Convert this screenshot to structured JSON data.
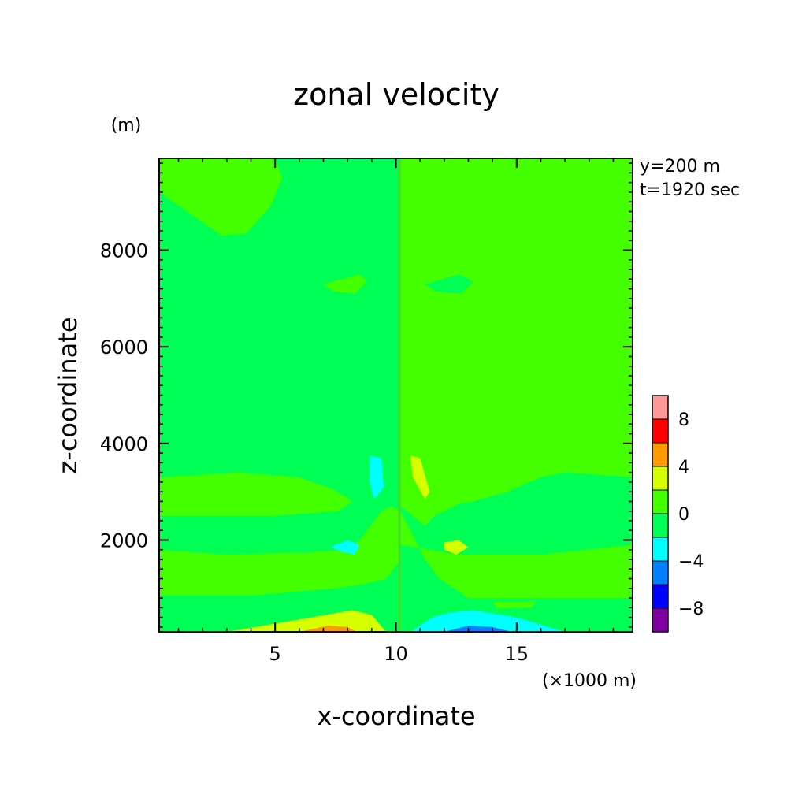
{
  "chart_data": {
    "type": "contour",
    "title": "zonal velocity",
    "xlabel": "x-coordinate",
    "ylabel": "z-coordinate",
    "x_unit": "(×1000 m)",
    "y_unit": "(m)",
    "annotations": [
      "y=200 m",
      "t=1920 sec"
    ],
    "xlim": [
      0.2,
      19.8
    ],
    "ylim": [
      100,
      9900
    ],
    "x_ticks": [
      5,
      10,
      15
    ],
    "x_tick_labels": [
      "5",
      "10",
      "15"
    ],
    "y_ticks": [
      2000,
      4000,
      6000,
      8000
    ],
    "y_tick_labels": [
      "2000",
      "4000",
      "6000",
      "8000"
    ],
    "grid": false,
    "colorbar": {
      "position": "right",
      "levels": [
        -10,
        -8,
        -6,
        -4,
        -2,
        0,
        2,
        4,
        6,
        8,
        10
      ],
      "tick_labels": [
        "8",
        "4",
        "0",
        "−4",
        "−8"
      ],
      "tick_values": [
        8,
        4,
        0,
        -4,
        -8
      ],
      "colors": [
        "#7f00a0",
        "#0000ff",
        "#0080ff",
        "#00ffff",
        "#00ff55",
        "#44ff00",
        "#d6ff00",
        "#ff9900",
        "#ff0000",
        "#ff9999"
      ]
    },
    "background_level": [
      -2,
      0
    ],
    "regions": [
      {
        "level": [
          0,
          2
        ],
        "x": [
          0.2,
          5.0,
          5.3,
          4.8,
          3.8,
          2.8,
          0.2
        ],
        "z": [
          9900,
          9900,
          9500,
          8900,
          8350,
          8300,
          9200
        ]
      },
      {
        "level": [
          0,
          2
        ],
        "x": [
          19.8,
          15.0,
          14.8,
          15.2,
          16.2,
          17.0,
          19.8
        ],
        "z": [
          9900,
          9900,
          9500,
          8900,
          8350,
          8300,
          9200
        ]
      },
      {
        "level": [
          0,
          2
        ],
        "x": [
          10.2,
          19.8,
          19.8,
          17.0,
          16.0,
          14.6,
          13.2,
          12.6,
          12.4,
          11.6,
          11.2,
          10.2
        ],
        "z": [
          9900,
          9900,
          3300,
          3400,
          3300,
          3000,
          2800,
          2750,
          2700,
          2500,
          2300,
          2700
        ]
      },
      {
        "level": [
          0,
          2
        ],
        "x": [
          19.8,
          13.0,
          11.8,
          11.2,
          10.8,
          10.2,
          10.2,
          12.6,
          16.0,
          19.8
        ],
        "z": [
          800,
          800,
          1200,
          1600,
          2000,
          2600,
          1900,
          1700,
          1700,
          1900
        ]
      },
      {
        "level": [
          0,
          2
        ],
        "x": [
          0.2,
          3.0,
          6.5,
          7.8,
          8.5,
          9.4,
          9.8,
          10.2,
          10.2,
          9.6,
          8.8,
          7.5,
          4.0,
          0.2
        ],
        "z": [
          1800,
          1700,
          1750,
          1800,
          2000,
          2600,
          2700,
          2600,
          1600,
          1200,
          1100,
          1000,
          850,
          850
        ]
      },
      {
        "level": [
          0,
          2
        ],
        "x": [
          0.2,
          3.5,
          6.0,
          7.4,
          8.2,
          7.6,
          5.0,
          0.2
        ],
        "z": [
          3300,
          3400,
          3300,
          3050,
          2800,
          2600,
          2500,
          2500
        ]
      },
      {
        "level": [
          0,
          2
        ],
        "x": [
          7.4,
          8.5,
          8.8,
          8.3,
          7.4,
          7.0
        ],
        "z": [
          7350,
          7500,
          7350,
          7100,
          7150,
          7300
        ]
      },
      {
        "level": [
          -2,
          0
        ],
        "x": [
          11.6,
          12.6,
          13.2,
          12.7,
          11.6,
          11.2
        ],
        "z": [
          7350,
          7500,
          7350,
          7100,
          7150,
          7300
        ]
      },
      {
        "level": [
          -2,
          0
        ],
        "x": [
          4.6,
          6.0,
          6.2,
          5.0,
          4.4
        ],
        "z": [
          720,
          750,
          600,
          550,
          600
        ]
      },
      {
        "level": [
          0,
          2
        ],
        "x": [
          14.0,
          15.8,
          15.6,
          14.2
        ],
        "z": [
          720,
          740,
          600,
          580
        ]
      },
      {
        "level": [
          2,
          4
        ],
        "x": [
          3.0,
          6.5,
          8.2,
          9.0,
          9.6,
          3.0
        ],
        "z": [
          100,
          400,
          550,
          450,
          100,
          100
        ]
      },
      {
        "level": [
          4,
          6
        ],
        "x": [
          6.0,
          7.2,
          8.0,
          8.4,
          6.0
        ],
        "z": [
          100,
          230,
          200,
          100,
          100
        ]
      },
      {
        "level": [
          -4,
          -2
        ],
        "x": [
          10.6,
          11.5,
          12.2,
          13.2,
          15.0,
          17.0,
          10.6
        ],
        "z": [
          100,
          400,
          500,
          550,
          400,
          100,
          100
        ]
      },
      {
        "level": [
          -6,
          -4
        ],
        "x": [
          12.0,
          13.0,
          14.0,
          14.8,
          12.0
        ],
        "z": [
          100,
          230,
          200,
          100,
          100
        ]
      },
      {
        "level": [
          -4,
          -2
        ],
        "x": [
          8.9,
          9.4,
          9.5,
          9.1,
          8.9
        ],
        "z": [
          3750,
          3700,
          3100,
          2850,
          3200
        ]
      },
      {
        "level": [
          2,
          4
        ],
        "x": [
          10.6,
          11.0,
          11.4,
          11.2,
          10.7
        ],
        "z": [
          3750,
          3700,
          3000,
          2850,
          3300
        ]
      },
      {
        "level": [
          -4,
          -2
        ],
        "x": [
          7.5,
          8.0,
          8.5,
          8.3,
          7.8,
          7.3
        ],
        "z": [
          1900,
          2000,
          1900,
          1700,
          1750,
          1850
        ]
      },
      {
        "level": [
          2,
          4
        ],
        "x": [
          12.0,
          12.6,
          13.0,
          12.5,
          12.0
        ],
        "z": [
          1950,
          2000,
          1850,
          1700,
          1800
        ]
      }
    ]
  }
}
